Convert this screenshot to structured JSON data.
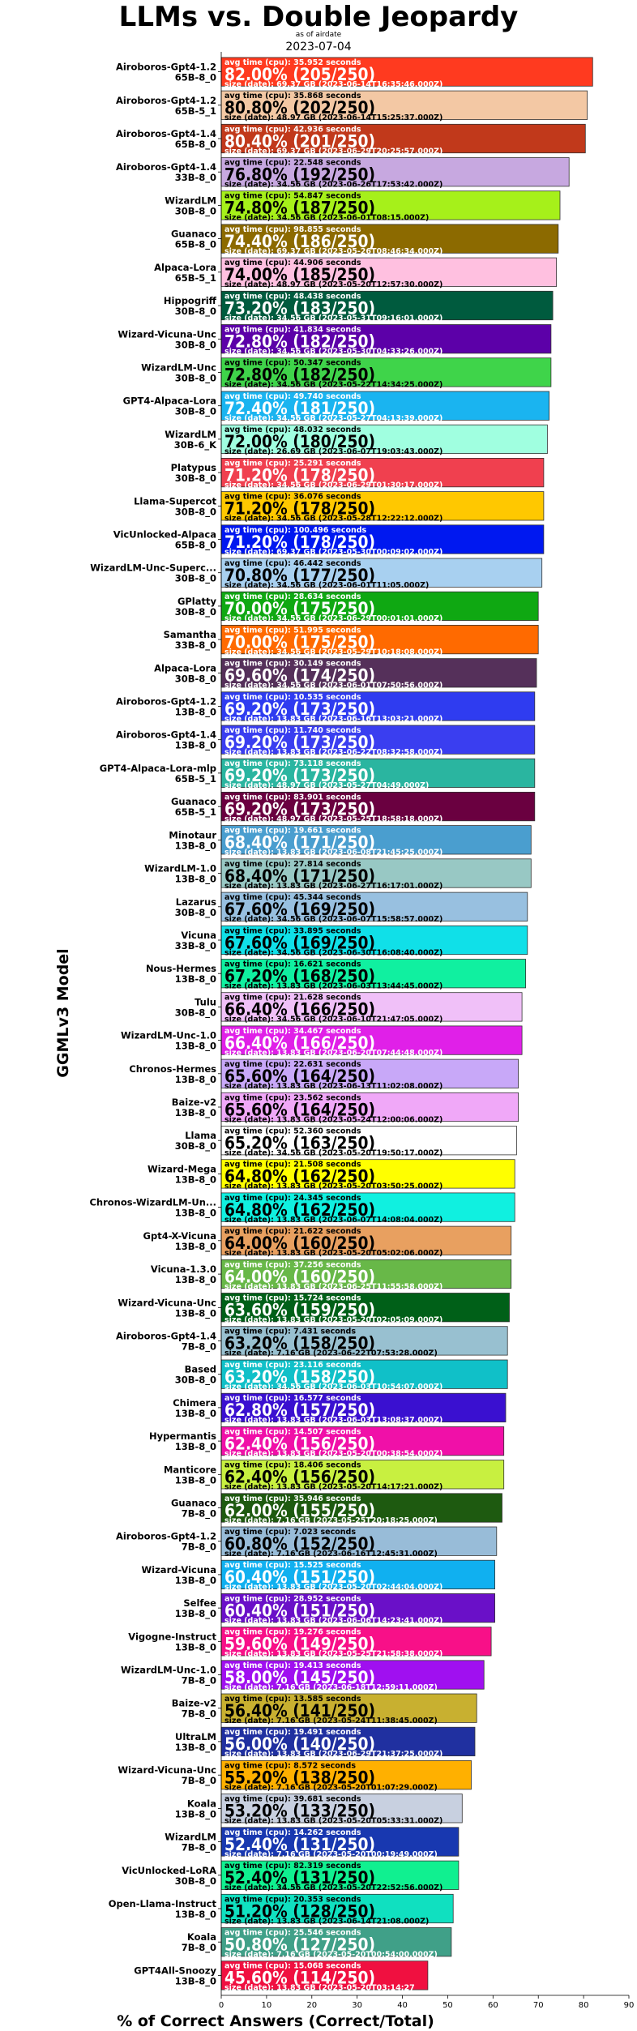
{
  "chart_data": {
    "type": "bar",
    "orientation": "horizontal",
    "title": "LLMs vs. Double Jeopardy",
    "subtitle": "as of airdate",
    "date": "2023-07-04",
    "xlabel": "% of Correct Answers (Correct/Total)",
    "ylabel": "GGMLv3 Model",
    "xlim": [
      0,
      90
    ],
    "xticks": [
      0,
      10,
      20,
      30,
      40,
      50,
      60,
      70,
      80,
      90
    ],
    "grid": false,
    "bars": [
      {
        "name": "Airoboros-Gpt4-1.2",
        "variant": "65B-8_0",
        "pct": "82.00%",
        "count": "(205/250)",
        "time": "avg time (cpu): 35.952 seconds",
        "size": "size (date): 69.37 GB (2023-06-14T16:35:46.000Z)",
        "value": 82.0,
        "color": "#ff3a1f"
      },
      {
        "name": "Airoboros-Gpt4-1.2",
        "variant": "65B-5_1",
        "pct": "80.80%",
        "count": "(202/250)",
        "time": "avg time (cpu): 35.868 seconds",
        "size": "size (date): 48.97 GB (2023-06-14T15:25:37.000Z)",
        "value": 80.8,
        "color": "#f3c8a4"
      },
      {
        "name": "Airoboros-Gpt4-1.4",
        "variant": "65B-8_0",
        "pct": "80.40%",
        "count": "(201/250)",
        "time": "avg time (cpu): 42.936 seconds",
        "size": "size (date): 69.37 GB (2023-06-29T20:25:57.000Z)",
        "value": 80.4,
        "color": "#c1391b"
      },
      {
        "name": "Airoboros-Gpt4-1.4",
        "variant": "33B-8_0",
        "pct": "76.80%",
        "count": "(192/250)",
        "time": "avg time (cpu): 22.548 seconds",
        "size": "size (date): 34.56 GB (2023-06-26T17:53:42.000Z)",
        "value": 76.8,
        "color": "#c7a8e0"
      },
      {
        "name": "WizardLM",
        "variant": "30B-8_0",
        "pct": "74.80%",
        "count": "(187/250)",
        "time": "avg time (cpu): 54.847 seconds",
        "size": "size (date): 34.56 GB (2023-06-01T08:15.000Z)",
        "value": 74.8,
        "color": "#a6f01a"
      },
      {
        "name": "Guanaco",
        "variant": "65B-8_0",
        "pct": "74.40%",
        "count": "(186/250)",
        "time": "avg time (cpu): 98.855 seconds",
        "size": "size (date): 69.37 GB (2023-05-26T08:46:34.000Z)",
        "value": 74.4,
        "color": "#8c6a00"
      },
      {
        "name": "Alpaca-Lora",
        "variant": "65B-5_1",
        "pct": "74.00%",
        "count": "(185/250)",
        "time": "avg time (cpu): 44.906 seconds",
        "size": "size (date): 48.97 GB (2023-05-20T12:57:30.000Z)",
        "value": 74.0,
        "color": "#ffc0e0"
      },
      {
        "name": "Hippogriff",
        "variant": "30B-8_0",
        "pct": "73.20%",
        "count": "(183/250)",
        "time": "avg time (cpu): 48.438 seconds",
        "size": "size (date): 34.56 GB (2023-05-31T09:16:01.000Z)",
        "value": 73.2,
        "color": "#005b3e"
      },
      {
        "name": "Wizard-Vicuna-Unc",
        "variant": "30B-8_0",
        "pct": "72.80%",
        "count": "(182/250)",
        "time": "avg time (cpu): 41.834 seconds",
        "size": "size (date): 34.56 GB (2023-05-30T04:33:26.000Z)",
        "value": 72.8,
        "color": "#5c00a8"
      },
      {
        "name": "WizardLM-Unc",
        "variant": "30B-8_0",
        "pct": "72.80%",
        "count": "(182/250)",
        "time": "avg time (cpu): 50.347 seconds",
        "size": "size (date): 34.56 GB (2023-05-22T14:34:25.000Z)",
        "value": 72.8,
        "color": "#3fd44a"
      },
      {
        "name": "GPT4-Alpaca-Lora",
        "variant": "30B-8_0",
        "pct": "72.40%",
        "count": "(181/250)",
        "time": "avg time (cpu): 49.740 seconds",
        "size": "size (date): 34.56 GB (2023-05-27T04:13:39.000Z)",
        "value": 72.4,
        "color": "#1ab4f0"
      },
      {
        "name": "WizardLM",
        "variant": "30B-6_K",
        "pct": "72.00%",
        "count": "(180/250)",
        "time": "avg time (cpu): 48.032 seconds",
        "size": "size (date): 26.69 GB (2023-06-07T19:03:43.000Z)",
        "value": 72.0,
        "color": "#a0ffe0"
      },
      {
        "name": "Platypus",
        "variant": "30B-8_0",
        "pct": "71.20%",
        "count": "(178/250)",
        "time": "avg time (cpu): 25.291 seconds",
        "size": "size (date): 34.56 GB (2023-06-29T01:30:17.000Z)",
        "value": 71.2,
        "color": "#f0404f"
      },
      {
        "name": "Llama-Supercot",
        "variant": "30B-8_0",
        "pct": "71.20%",
        "count": "(178/250)",
        "time": "avg time (cpu): 36.076 seconds",
        "size": "size (date): 34.56 GB (2023-05-28T12:22:12.000Z)",
        "value": 71.2,
        "color": "#ffc800"
      },
      {
        "name": "VicUnlocked-Alpaca",
        "variant": "65B-8_0",
        "pct": "71.20%",
        "count": "(178/250)",
        "time": "avg time (cpu): 100.496 seconds",
        "size": "size (date): 69.37 GB (2023-05-30T00:09:02.000Z)",
        "value": 71.2,
        "color": "#0018f0"
      },
      {
        "name": "WizardLM-Unc-Superc...",
        "variant": "30B-8_0",
        "pct": "70.80%",
        "count": "(177/250)",
        "time": "avg time (cpu): 46.442 seconds",
        "size": "size (date): 34.56 GB (2023-06-01T11:05.000Z)",
        "value": 70.8,
        "color": "#a8d0f0"
      },
      {
        "name": "GPlatty",
        "variant": "30B-8_0",
        "pct": "70.00%",
        "count": "(175/250)",
        "time": "avg time (cpu): 28.634 seconds",
        "size": "size (date): 34.56 GB (2023-06-29T00:01:01.000Z)",
        "value": 70.0,
        "color": "#0fa812"
      },
      {
        "name": "Samantha",
        "variant": "33B-8_0",
        "pct": "70.00%",
        "count": "(175/250)",
        "time": "avg time (cpu): 51.995 seconds",
        "size": "size (date): 34.56 GB (2023-05-29T10:18:08.000Z)",
        "value": 70.0,
        "color": "#ff6a00"
      },
      {
        "name": "Alpaca-Lora",
        "variant": "30B-8_0",
        "pct": "69.60%",
        "count": "(174/250)",
        "time": "avg time (cpu): 30.149 seconds",
        "size": "size (date): 34.56 GB (2023-06-01T07:50:56.000Z)",
        "value": 69.6,
        "color": "#55305a"
      },
      {
        "name": "Airoboros-Gpt4-1.2",
        "variant": "13B-8_0",
        "pct": "69.20%",
        "count": "(173/250)",
        "time": "avg time (cpu): 10.535 seconds",
        "size": "size (date): 13.83 GB (2023-06-16T13:03:21.000Z)",
        "value": 69.2,
        "color": "#2f3cf0"
      },
      {
        "name": "Airoboros-Gpt4-1.4",
        "variant": "13B-8_0",
        "pct": "69.20%",
        "count": "(173/250)",
        "time": "avg time (cpu): 11.740 seconds",
        "size": "size (date): 13.83 GB (2023-06-22T08:32:58.000Z)",
        "value": 69.2,
        "color": "#3a3ef0"
      },
      {
        "name": "GPT4-Alpaca-Lora-mlp",
        "variant": "65B-5_1",
        "pct": "69.20%",
        "count": "(173/250)",
        "time": "avg time (cpu): 73.118 seconds",
        "size": "size (date): 48.97 GB (2023-05-27T04:49.000Z)",
        "value": 69.2,
        "color": "#2ab5a0"
      },
      {
        "name": "Guanaco",
        "variant": "65B-5_1",
        "pct": "69.20%",
        "count": "(173/250)",
        "time": "avg time (cpu): 83.901 seconds",
        "size": "size (date): 48.97 GB (2023-05-25T18:58:18.000Z)",
        "value": 69.2,
        "color": "#6a0040"
      },
      {
        "name": "Minotaur",
        "variant": "13B-8_0",
        "pct": "68.40%",
        "count": "(171/250)",
        "time": "avg time (cpu): 19.661 seconds",
        "size": "size (date): 13.83 GB (2023-06-08T21:45:25.000Z)",
        "value": 68.4,
        "color": "#4a9ecf"
      },
      {
        "name": "WizardLM-1.0",
        "variant": "13B-8_0",
        "pct": "68.40%",
        "count": "(171/250)",
        "time": "avg time (cpu): 27.814 seconds",
        "size": "size (date): 13.83 GB (2023-06-27T16:17:01.000Z)",
        "value": 68.4,
        "color": "#98c8c4"
      },
      {
        "name": "Lazarus",
        "variant": "30B-8_0",
        "pct": "67.60%",
        "count": "(169/250)",
        "time": "avg time (cpu): 45.344 seconds",
        "size": "size (date): 34.56 GB (2023-06-07T15:58:57.000Z)",
        "value": 67.6,
        "color": "#98c0e0"
      },
      {
        "name": "Vicuna",
        "variant": "33B-8_0",
        "pct": "67.60%",
        "count": "(169/250)",
        "time": "avg time (cpu): 33.895 seconds",
        "size": "size (date): 34.56 GB (2023-06-30T16:08:40.000Z)",
        "value": 67.6,
        "color": "#10e0e8"
      },
      {
        "name": "Nous-Hermes",
        "variant": "13B-8_0",
        "pct": "67.20%",
        "count": "(168/250)",
        "time": "avg time (cpu): 16.621 seconds",
        "size": "size (date): 13.83 GB (2023-06-03T13:44:45.000Z)",
        "value": 67.2,
        "color": "#10f0a0"
      },
      {
        "name": "Tulu",
        "variant": "30B-8_0",
        "pct": "66.40%",
        "count": "(166/250)",
        "time": "avg time (cpu): 21.628 seconds",
        "size": "size (date): 34.56 GB (2023-06-10T21:47:05.000Z)",
        "value": 66.4,
        "color": "#f0c0f8"
      },
      {
        "name": "WizardLM-Unc-1.0",
        "variant": "13B-8_0",
        "pct": "66.40%",
        "count": "(166/250)",
        "time": "avg time (cpu): 34.467 seconds",
        "size": "size (date): 13.83 GB (2023-06-20T07:44:48.000Z)",
        "value": 66.4,
        "color": "#e020e8"
      },
      {
        "name": "Chronos-Hermes",
        "variant": "13B-8_0",
        "pct": "65.60%",
        "count": "(164/250)",
        "time": "avg time (cpu): 22.631 seconds",
        "size": "size (date): 13.83 GB (2023-06-13T11:02:08.000Z)",
        "value": 65.6,
        "color": "#c8a8f8"
      },
      {
        "name": "Baize-v2",
        "variant": "13B-8_0",
        "pct": "65.60%",
        "count": "(164/250)",
        "time": "avg time (cpu): 23.562 seconds",
        "size": "size (date): 13.83 GB (2023-05-24T12:00:06.000Z)",
        "value": 65.6,
        "color": "#f0a8f8"
      },
      {
        "name": "Llama",
        "variant": "30B-8_0",
        "pct": "65.20%",
        "count": "(163/250)",
        "time": "avg time (cpu): 52.360 seconds",
        "size": "size (date): 34.56 GB (2023-05-20T19:50:17.000Z)",
        "value": 65.2,
        "color": "#ffffff"
      },
      {
        "name": "Wizard-Mega",
        "variant": "13B-8_0",
        "pct": "64.80%",
        "count": "(162/250)",
        "time": "avg time (cpu): 21.508 seconds",
        "size": "size (date): 13.83 GB (2023-05-20T03:50:25.000Z)",
        "value": 64.8,
        "color": "#ffff00"
      },
      {
        "name": "Chronos-WizardLM-Un...",
        "variant": "13B-8_0",
        "pct": "64.80%",
        "count": "(162/250)",
        "time": "avg time (cpu): 24.345 seconds",
        "size": "size (date): 13.83 GB (2023-06-07T14:08:04.000Z)",
        "value": 64.8,
        "color": "#10f0e0"
      },
      {
        "name": "Gpt4-X-Vicuna",
        "variant": "13B-8_0",
        "pct": "64.00%",
        "count": "(160/250)",
        "time": "avg time (cpu): 21.622 seconds",
        "size": "size (date): 13.83 GB (2023-05-20T05:02:06.000Z)",
        "value": 64.0,
        "color": "#e8a060"
      },
      {
        "name": "Vicuna-1.3.0",
        "variant": "13B-8_0",
        "pct": "64.00%",
        "count": "(160/250)",
        "time": "avg time (cpu): 37.256 seconds",
        "size": "size (date): 13.83 GB (2023-06-25T11:55:58.000Z)",
        "value": 64.0,
        "color": "#68b848"
      },
      {
        "name": "Wizard-Vicuna-Unc",
        "variant": "13B-8_0",
        "pct": "63.60%",
        "count": "(159/250)",
        "time": "avg time (cpu): 15.724 seconds",
        "size": "size (date): 13.83 GB (2023-05-20T02:05:09.000Z)",
        "value": 63.6,
        "color": "#006018"
      },
      {
        "name": "Airoboros-Gpt4-1.4",
        "variant": "7B-8_0",
        "pct": "63.20%",
        "count": "(158/250)",
        "time": "avg time (cpu): 7.431 seconds",
        "size": "size (date): 7.16 GB (2023-06-22T07:53:28.000Z)",
        "value": 63.2,
        "color": "#98c0d0"
      },
      {
        "name": "Based",
        "variant": "30B-8_0",
        "pct": "63.20%",
        "count": "(158/250)",
        "time": "avg time (cpu): 23.116 seconds",
        "size": "size (date): 34.56 GB (2023-06-03T10:54:07.000Z)",
        "value": 63.2,
        "color": "#10c0c8"
      },
      {
        "name": "Chimera",
        "variant": "13B-8_0",
        "pct": "62.80%",
        "count": "(157/250)",
        "time": "avg time (cpu): 16.577 seconds",
        "size": "size (date): 13.83 GB (2023-06-03T13:08:37.000Z)",
        "value": 62.8,
        "color": "#3a10d0"
      },
      {
        "name": "Hypermantis",
        "variant": "13B-8_0",
        "pct": "62.40%",
        "count": "(156/250)",
        "time": "avg time (cpu): 14.507 seconds",
        "size": "size (date): 13.83 GB (2023-05-20T00:38:54.000Z)",
        "value": 62.4,
        "color": "#f010a8"
      },
      {
        "name": "Manticore",
        "variant": "13B-8_0",
        "pct": "62.40%",
        "count": "(156/250)",
        "time": "avg time (cpu): 18.406 seconds",
        "size": "size (date): 13.83 GB (2023-05-20T14:17:21.000Z)",
        "value": 62.4,
        "color": "#c8f040"
      },
      {
        "name": "Guanaco",
        "variant": "7B-8_0",
        "pct": "62.00%",
        "count": "(155/250)",
        "time": "avg time (cpu): 35.946 seconds",
        "size": "size (date): 7.16 GB (2023-05-25T20:18:25.000Z)",
        "value": 62.0,
        "color": "#1e5a10"
      },
      {
        "name": "Airoboros-Gpt4-1.2",
        "variant": "7B-8_0",
        "pct": "60.80%",
        "count": "(152/250)",
        "time": "avg time (cpu): 7.023 seconds",
        "size": "size (date): 7.16 GB (2023-06-16T12:45:31.000Z)",
        "value": 60.8,
        "color": "#98bcd8"
      },
      {
        "name": "Wizard-Vicuna",
        "variant": "13B-8_0",
        "pct": "60.40%",
        "count": "(151/250)",
        "time": "avg time (cpu): 15.525 seconds",
        "size": "size (date): 13.83 GB (2023-05-20T02:44:04.000Z)",
        "value": 60.4,
        "color": "#10b0f0"
      },
      {
        "name": "Selfee",
        "variant": "13B-8_0",
        "pct": "60.40%",
        "count": "(151/250)",
        "time": "avg time (cpu): 28.952 seconds",
        "size": "size (date): 13.83 GB (2023-06-06T14:23:41.000Z)",
        "value": 60.4,
        "color": "#6a10c8"
      },
      {
        "name": "Vigogne-Instruct",
        "variant": "13B-8_0",
        "pct": "59.60%",
        "count": "(149/250)",
        "time": "avg time (cpu): 19.276 seconds",
        "size": "size (date): 13.83 GB (2023-05-25T21:58:38.000Z)",
        "value": 59.6,
        "color": "#f81088"
      },
      {
        "name": "WizardLM-Unc-1.0",
        "variant": "7B-8_0",
        "pct": "58.00%",
        "count": "(145/250)",
        "time": "avg time (cpu): 19.413 seconds",
        "size": "size (date): 7.16 GB (2023-06-18T12:59:11.000Z)",
        "value": 58.0,
        "color": "#a010f0"
      },
      {
        "name": "Baize-v2",
        "variant": "7B-8_0",
        "pct": "56.40%",
        "count": "(141/250)",
        "time": "avg time (cpu): 13.585 seconds",
        "size": "size (date): 7.16 GB (2023-05-24T11:38:45.000Z)",
        "value": 56.4,
        "color": "#c8b030"
      },
      {
        "name": "UltraLM",
        "variant": "13B-8_0",
        "pct": "56.00%",
        "count": "(140/250)",
        "time": "avg time (cpu): 19.491 seconds",
        "size": "size (date): 13.83 GB (2023-06-29T21:37:25.000Z)",
        "value": 56.0,
        "color": "#2030a0"
      },
      {
        "name": "Wizard-Vicuna-Unc",
        "variant": "7B-8_0",
        "pct": "55.20%",
        "count": "(138/250)",
        "time": "avg time (cpu): 8.572 seconds",
        "size": "size (date): 7.16 GB (2023-05-20T01:07:29.000Z)",
        "value": 55.2,
        "color": "#ffb000"
      },
      {
        "name": "Koala",
        "variant": "13B-8_0",
        "pct": "53.20%",
        "count": "(133/250)",
        "time": "avg time (cpu): 39.681 seconds",
        "size": "size (date): 13.83 GB (2023-05-20T05:33:31.000Z)",
        "value": 53.2,
        "color": "#c8d0e0"
      },
      {
        "name": "WizardLM",
        "variant": "7B-8_0",
        "pct": "52.40%",
        "count": "(131/250)",
        "time": "avg time (cpu): 14.262 seconds",
        "size": "size (date): 7.16 GB (2023-05-20T00:19:49.000Z)",
        "value": 52.4,
        "color": "#1838b0"
      },
      {
        "name": "VicUnlocked-LoRA",
        "variant": "30B-8_0",
        "pct": "52.40%",
        "count": "(131/250)",
        "time": "avg time (cpu): 82.319 seconds",
        "size": "size (date): 34.56 GB (2023-05-20T22:52:56.000Z)",
        "value": 52.4,
        "color": "#10f090"
      },
      {
        "name": "Open-Llama-Instruct",
        "variant": "13B-8_0",
        "pct": "51.20%",
        "count": "(128/250)",
        "time": "avg time (cpu): 20.353 seconds",
        "size": "size (date): 13.83 GB (2023-06-14T21:08.000Z)",
        "value": 51.2,
        "color": "#10e0c0"
      },
      {
        "name": "Koala",
        "variant": "7B-8_0",
        "pct": "50.80%",
        "count": "(127/250)",
        "time": "avg time (cpu): 25.546 seconds",
        "size": "size (date): 7.16 GB (2023-05-20T00:54:00.000Z)",
        "value": 50.8,
        "color": "#40a088"
      },
      {
        "name": "GPT4All-Snoozy",
        "variant": "13B-8_0",
        "pct": "45.60%",
        "count": "(114/250)",
        "time": "avg time (cpu): 15.068 seconds",
        "size": "size (date): 13.83 GB (2023-05-20T03:14:27",
        "value": 45.6,
        "color": "#f01040"
      }
    ]
  }
}
